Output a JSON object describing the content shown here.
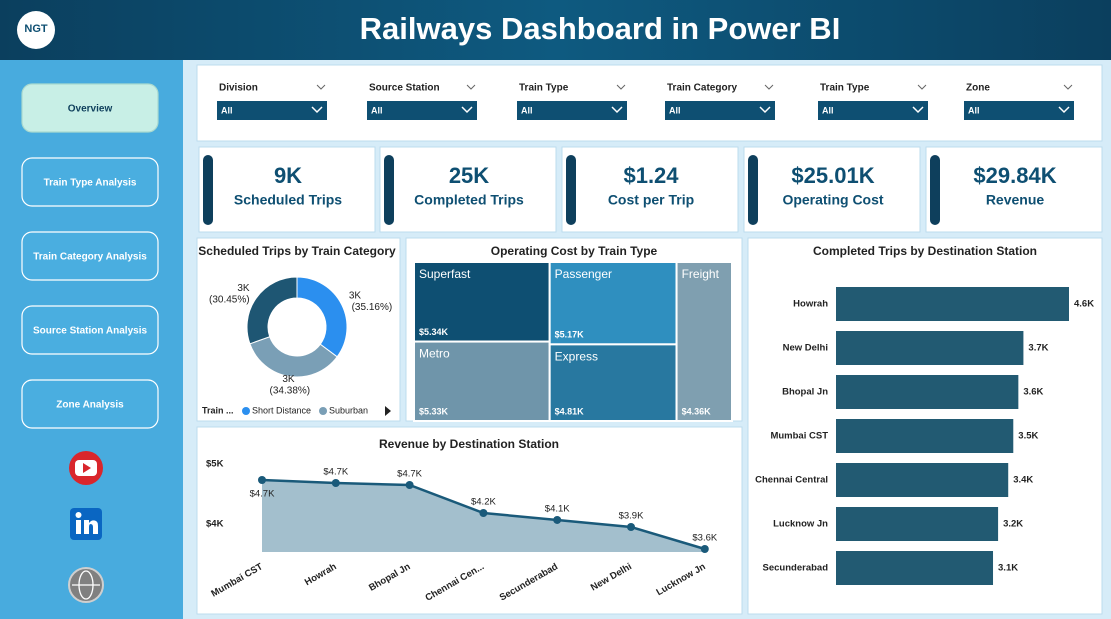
{
  "header": {
    "logo": "NGT",
    "title": "Railways Dashboard in Power BI"
  },
  "nav": [
    "Overview",
    "Train Type Analysis",
    "Train Category Analysis",
    "Source Station Analysis",
    "Zone Analysis"
  ],
  "filters": [
    {
      "label": "Division",
      "value": "All"
    },
    {
      "label": "Source Station",
      "value": "All"
    },
    {
      "label": "Train Type",
      "value": "All"
    },
    {
      "label": "Train Category",
      "value": "All"
    },
    {
      "label": "Train Type",
      "value": "All"
    },
    {
      "label": "Zone",
      "value": "All"
    }
  ],
  "kpis": [
    {
      "value": "9K",
      "label": "Scheduled Trips"
    },
    {
      "value": "25K",
      "label": "Completed Trips"
    },
    {
      "value": "$1.24",
      "label": "Cost per Trip"
    },
    {
      "value": "$25.01K",
      "label": "Operating Cost"
    },
    {
      "value": "$29.84K",
      "label": "Revenue"
    }
  ],
  "chart_data": [
    {
      "type": "donut",
      "title": "Scheduled Trips by Train Category",
      "legend_title": "Train ...",
      "categories": [
        "Short Distance",
        "Suburban",
        null
      ],
      "values": [
        35.16,
        34.38,
        30.45
      ],
      "value_labels": [
        "3K (35.16%)",
        "3K (34.38%)",
        "3K (30.45%)"
      ],
      "colors": [
        "#2b8fef",
        "#7a9fb6",
        "#1e5673"
      ]
    },
    {
      "type": "treemap",
      "title": "Operating Cost by Train Type",
      "categories": [
        "Superfast",
        "Metro",
        "Passenger",
        "Express",
        "Freight"
      ],
      "values": [
        5340,
        5330,
        5170,
        4810,
        4360
      ],
      "value_labels": [
        "$5.34K",
        "$5.33K",
        "$5.17K",
        "$4.81K",
        "$4.36K"
      ],
      "colors": [
        "#0e4f72",
        "#6f95aa",
        "#2f8fbf",
        "#2878a0",
        "#7f9fb0"
      ]
    },
    {
      "type": "hbar",
      "title": "Completed Trips by Destination Station",
      "categories": [
        "Howrah",
        "New Delhi",
        "Bhopal Jn",
        "Mumbai CST",
        "Chennai Central",
        "Lucknow Jn",
        "Secunderabad"
      ],
      "values": [
        4600,
        3700,
        3600,
        3500,
        3400,
        3200,
        3100
      ],
      "value_labels": [
        "4.6K",
        "3.7K",
        "3.6K",
        "3.5K",
        "3.4K",
        "3.2K",
        "3.1K"
      ],
      "color": "#225a72"
    },
    {
      "type": "area",
      "title": "Revenue by Destination Station",
      "categories": [
        "Mumbai CST",
        "Howrah",
        "Bhopal Jn",
        "Chennai Cen...",
        "Secunderabad",
        "New Delhi",
        "Lucknow Jn"
      ],
      "values": [
        4733,
        4683,
        4650,
        4183,
        4067,
        3950,
        3583
      ],
      "value_labels": [
        "$4.7K",
        "$4.7K",
        "$4.7K",
        "$4.2K",
        "$4.1K",
        "$3.9K",
        "$3.6K"
      ],
      "ylim": [
        3533,
        5150
      ],
      "yticks": [
        {
          "value": 4000,
          "label": "$4K"
        },
        {
          "value": 5000,
          "label": "$5K"
        }
      ],
      "color": "#1a5a7a",
      "fill": "#a3bfcd"
    }
  ]
}
